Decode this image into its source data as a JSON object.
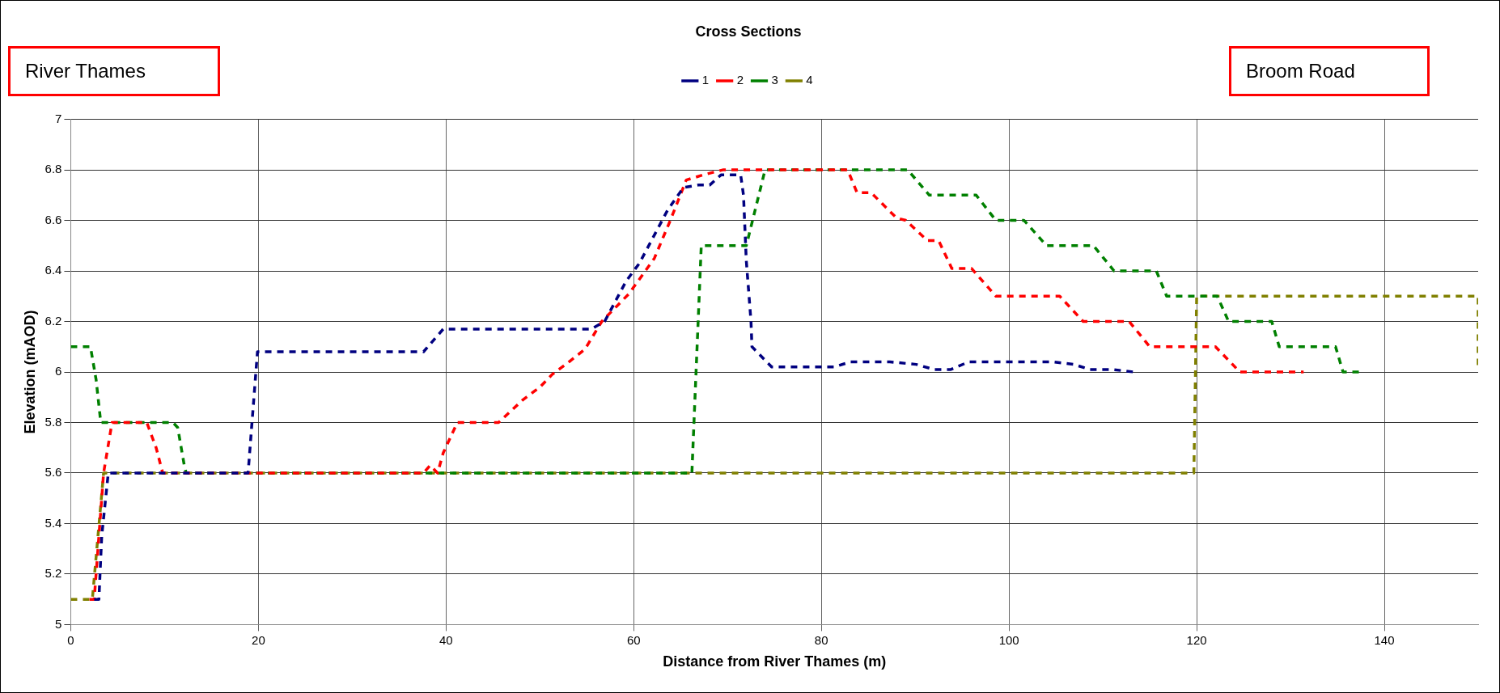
{
  "chart_data": {
    "type": "line",
    "title": "Cross Sections",
    "xlabel": "Distance from River Thames (m)",
    "ylabel": "Elevation (mAOD)",
    "annotations": [
      "River Thames",
      "Broom Road"
    ],
    "xlim": [
      0,
      150
    ],
    "xticks": [
      0,
      20,
      40,
      60,
      80,
      100,
      120,
      140
    ],
    "ylim": [
      5,
      7
    ],
    "yticks": [
      5,
      5.2,
      5.4,
      5.6,
      5.8,
      6,
      6.2,
      6.4,
      6.6,
      6.8,
      7
    ],
    "grid": true,
    "legend": "top",
    "marker": "none",
    "line_style": "dashed",
    "series": [
      {
        "name": "1",
        "color": "#000080",
        "x": [
          2.5,
          3,
          3.3,
          4,
          5,
          18.9,
          19.9,
          37.6,
          39.7,
          55.5,
          56.9,
          59.2,
          60.6,
          63.6,
          65.3,
          66.9,
          68.1,
          69.3,
          71.4,
          71.7,
          72,
          72.5,
          72.6,
          74.7,
          81.4,
          83.1,
          87.3,
          90.1,
          92,
          93.8,
          95.7,
          104.6,
          106.9,
          108.6,
          111,
          113.3
        ],
        "values": [
          5.1,
          5.1,
          5.35,
          5.6,
          5.6,
          5.6,
          6.08,
          6.08,
          6.17,
          6.17,
          6.2,
          6.36,
          6.43,
          6.64,
          6.73,
          6.74,
          6.74,
          6.78,
          6.78,
          6.7,
          6.44,
          6.2,
          6.1,
          6.02,
          6.02,
          6.04,
          6.04,
          6.03,
          6.01,
          6.01,
          6.04,
          6.04,
          6.03,
          6.01,
          6.01,
          6.0
        ]
      },
      {
        "name": "2",
        "color": "#ff0000",
        "x": [
          2,
          2.5,
          3.5,
          4.4,
          8.1,
          9.1,
          9.8,
          37.6,
          38.3,
          39.1,
          39.7,
          41.2,
          45.6,
          48.2,
          50,
          51.3,
          53.1,
          54.8,
          56.6,
          59.5,
          62.2,
          63.9,
          65.6,
          67.4,
          69.5,
          82.8,
          83.8,
          85.3,
          88,
          89,
          91.3,
          92.5,
          93.9,
          96,
          98.6,
          105.4,
          107.9,
          112.8,
          115,
          122,
          124.6,
          131.4
        ],
        "values": [
          5.1,
          5.1,
          5.6,
          5.8,
          5.8,
          5.7,
          5.6,
          5.6,
          5.63,
          5.6,
          5.68,
          5.8,
          5.8,
          5.89,
          5.94,
          5.99,
          6.04,
          6.09,
          6.2,
          6.31,
          6.45,
          6.6,
          6.76,
          6.78,
          6.8,
          6.8,
          6.71,
          6.71,
          6.61,
          6.6,
          6.52,
          6.52,
          6.41,
          6.41,
          6.3,
          6.3,
          6.2,
          6.2,
          6.1,
          6.1,
          6.0,
          6.0
        ]
      },
      {
        "name": "3",
        "color": "#008000",
        "x": [
          0,
          2.1,
          2.7,
          3.2,
          10.9,
          11.4,
          12.1,
          12.3,
          66.2,
          67.2,
          72,
          74,
          89.2,
          91.5,
          96.5,
          98.6,
          101.6,
          104,
          109,
          111.2,
          115.7,
          116.8,
          122.2,
          123.4,
          128,
          128.8,
          134.8,
          135.6,
          137.6
        ],
        "values": [
          6.1,
          6.1,
          5.97,
          5.8,
          5.8,
          5.78,
          5.63,
          5.6,
          5.6,
          6.5,
          6.5,
          6.8,
          6.8,
          6.7,
          6.7,
          6.6,
          6.6,
          6.5,
          6.5,
          6.4,
          6.4,
          6.3,
          6.3,
          6.2,
          6.2,
          6.1,
          6.1,
          6.0,
          6.0
        ]
      },
      {
        "name": "4",
        "color": "#808000",
        "x": [
          0,
          2.3,
          3.5,
          119.7,
          120,
          150,
          150
        ],
        "values": [
          5.1,
          5.1,
          5.6,
          5.6,
          6.3,
          6.3,
          6.02
        ]
      }
    ]
  }
}
